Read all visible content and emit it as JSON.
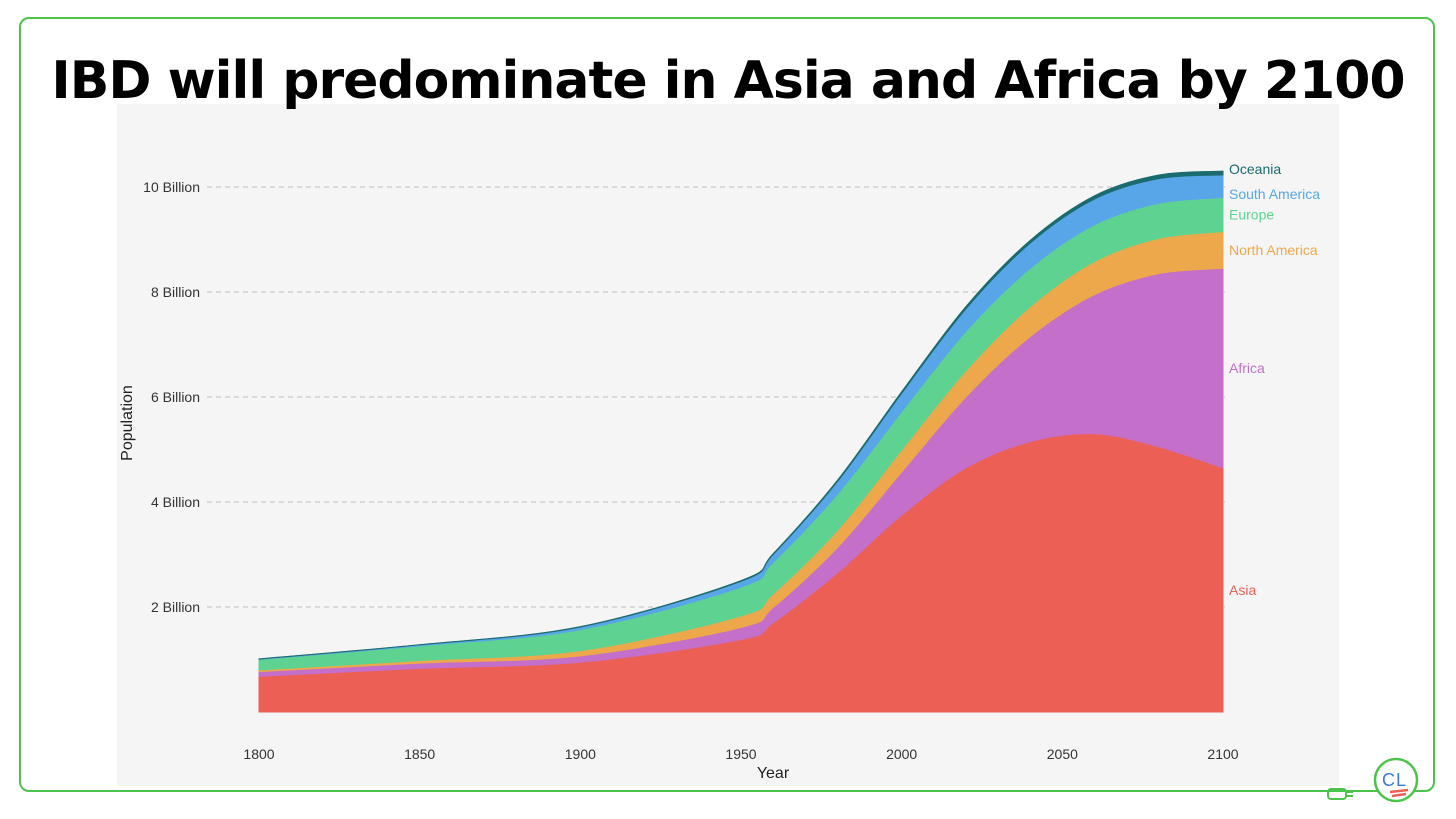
{
  "slide": {
    "title": "IBD will predominate in Asia and Africa by 2100"
  },
  "colors": {
    "frame": "#4cc44c",
    "plot_background": "#f5f5f5",
    "Asia": "#ec5f55",
    "Africa": "#c46fc9",
    "North America": "#eca84a",
    "Europe": "#5ed391",
    "South America": "#58a6e8",
    "Oceania": "#1b6b6f"
  },
  "chart_data": {
    "type": "area",
    "stacked": true,
    "title": "",
    "xlabel": "Year",
    "ylabel": "Population",
    "xlim": [
      1800,
      2100
    ],
    "ylim": [
      0,
      11000000000
    ],
    "x_ticks": [
      1800,
      1850,
      1900,
      1950,
      2000,
      2050,
      2100
    ],
    "y_ticks": [
      {
        "value": 2000000000,
        "label": "2 Billion"
      },
      {
        "value": 4000000000,
        "label": "4 Billion"
      },
      {
        "value": 6000000000,
        "label": "6 Billion"
      },
      {
        "value": 8000000000,
        "label": "8 Billion"
      },
      {
        "value": 10000000000,
        "label": "10 Billion"
      }
    ],
    "grid": "horizontal dashed",
    "legend": "labels at right end of each series",
    "x": [
      1800,
      1850,
      1900,
      1950,
      1960,
      1980,
      2000,
      2020,
      2040,
      2060,
      2080,
      2100
    ],
    "series": [
      {
        "name": "Asia",
        "values": [
          680000000.0,
          830000000.0,
          950000000.0,
          1380000000.0,
          1700000000.0,
          2650000000.0,
          3750000000.0,
          4650000000.0,
          5150000000.0,
          5300000000.0,
          5050000000.0,
          4650000000.0
        ]
      },
      {
        "name": "Africa",
        "values": [
          90000000.0,
          100000000.0,
          120000000.0,
          230000000.0,
          290000000.0,
          480000000.0,
          820000000.0,
          1350000000.0,
          2000000000.0,
          2650000000.0,
          3300000000.0,
          3800000000.0
        ]
      },
      {
        "name": "North America",
        "values": [
          30000000.0,
          50000000.0,
          100000000.0,
          220000000.0,
          260000000.0,
          330000000.0,
          420000000.0,
          500000000.0,
          570000000.0,
          630000000.0,
          670000000.0,
          700000000.0
        ]
      },
      {
        "name": "Europe",
        "values": [
          200000000.0,
          280000000.0,
          400000000.0,
          550000000.0,
          600000000.0,
          690000000.0,
          730000000.0,
          750000000.0,
          730000000.0,
          700000000.0,
          670000000.0,
          650000000.0
        ]
      },
      {
        "name": "South America",
        "values": [
          10000000.0,
          20000000.0,
          50000000.0,
          110000000.0,
          150000000.0,
          240000000.0,
          350000000.0,
          430000000.0,
          480000000.0,
          490000000.0,
          470000000.0,
          430000000.0
        ]
      },
      {
        "name": "Oceania",
        "values": [
          2000000.0,
          2000000.0,
          6000000.0,
          13000000.0,
          16000000.0,
          23000000.0,
          31000000.0,
          43000000.0,
          54000000.0,
          63000000.0,
          69000000.0,
          72000000.0
        ]
      }
    ]
  }
}
